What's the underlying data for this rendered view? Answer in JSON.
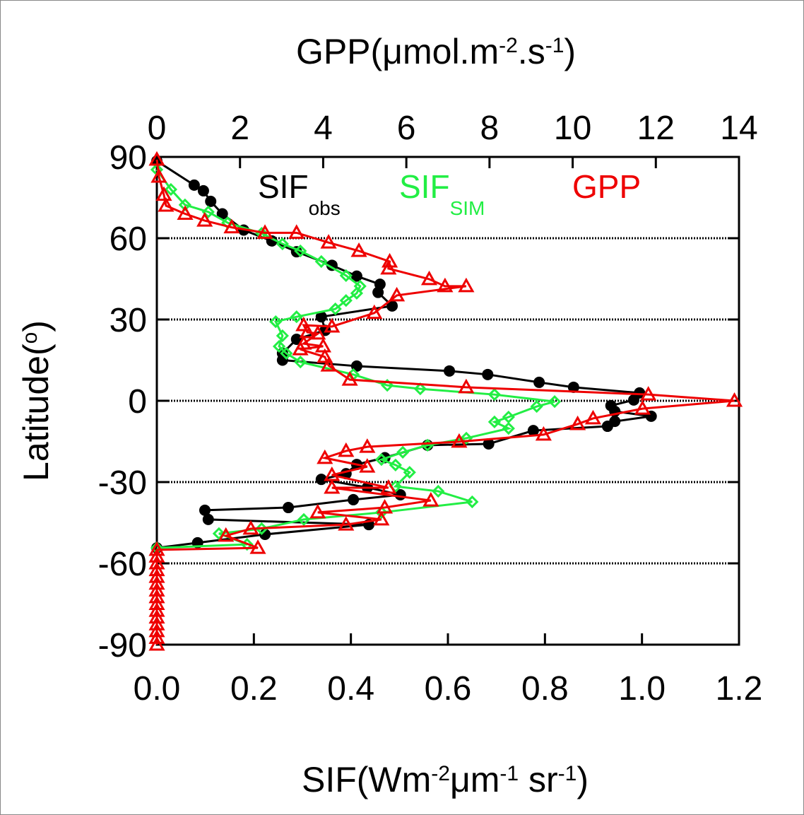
{
  "chart_data": {
    "type": "line",
    "x_label": [
      "SIF(Wm",
      "-2",
      "μm",
      "-1",
      " sr",
      "-1",
      ")"
    ],
    "x2_label": [
      "GPP(μmol.m",
      "-2",
      ".s",
      "-1",
      ")"
    ],
    "y_label": [
      "Latitude(",
      "o",
      ")"
    ],
    "xlim": [
      0,
      1.2
    ],
    "xticks": [
      {
        "value": 0,
        "label": "0.0"
      },
      {
        "value": 0.2,
        "label": "0.2"
      },
      {
        "value": 0.4,
        "label": "0.4"
      },
      {
        "value": 0.6,
        "label": "0.6"
      },
      {
        "value": 0.8,
        "label": "0.8"
      },
      {
        "value": 1.0,
        "label": "1.0"
      },
      {
        "value": 1.2,
        "label": "1.2"
      }
    ],
    "x2lim": [
      0,
      14
    ],
    "x2ticks": [
      0,
      2,
      4,
      6,
      8,
      10,
      12,
      14
    ],
    "ylim": [
      -90,
      90
    ],
    "yticks": [
      90,
      60,
      30,
      0,
      -30,
      -60,
      -90
    ],
    "grid": true,
    "series": [
      {
        "name": "SIF",
        "name_sub": "obs",
        "color": "#000000",
        "marker": "circle",
        "y": [
          88.5,
          79.6,
          77.5,
          73.6,
          69,
          63,
          59,
          55,
          50,
          46,
          43,
          40,
          35,
          31,
          26,
          22.7,
          17.5,
          15,
          12.8,
          11,
          9.7,
          6.8,
          5,
          2.9,
          0.3,
          -1.8,
          -3.9,
          -5.7,
          -7.6,
          -9.4,
          -11,
          -15.9,
          -16.4,
          -21,
          -23.5,
          -26.9,
          -29,
          -32,
          -34.7,
          -36.5,
          -39.4,
          -40.4,
          -43.8,
          -45.7,
          -49.3,
          -52.4,
          -54.3
        ],
        "values": [
          0,
          0.077,
          0.096,
          0.111,
          0.135,
          0.179,
          0.237,
          0.288,
          0.361,
          0.412,
          0.46,
          0.456,
          0.485,
          0.339,
          0.347,
          0.288,
          0.259,
          0.259,
          0.412,
          0.603,
          0.682,
          0.788,
          0.859,
          0.995,
          0.983,
          0.936,
          0.944,
          1.019,
          0.944,
          0.929,
          0.776,
          0.684,
          0.558,
          0.47,
          0.412,
          0.39,
          0.339,
          0.434,
          0.502,
          0.405,
          0.271,
          0.099,
          0.106,
          0.437,
          0.223,
          0.084,
          0
        ]
      },
      {
        "name": "SIF",
        "name_sub": "SIM",
        "color": "#22ee44",
        "marker": "diamond",
        "y": [
          85.3,
          78,
          72.3,
          69.7,
          65.7,
          61.8,
          57.9,
          55.3,
          51.4,
          46.2,
          42.3,
          39.7,
          37,
          33.9,
          31,
          29.2,
          24,
          20.1,
          17.5,
          14.3,
          9.7,
          5.7,
          4.4,
          2.3,
          -0.3,
          -2.1,
          -6,
          -7.8,
          -10.2,
          -13.8,
          -16.4,
          -19,
          -21.7,
          -23.7,
          -26.4,
          -31.6,
          -33.4,
          -37.3,
          -41.2,
          -43.8,
          -47.2,
          -49,
          -53,
          -54.3
        ],
        "values": [
          0,
          0.029,
          0.058,
          0.106,
          0.146,
          0.216,
          0.259,
          0.296,
          0.339,
          0.39,
          0.419,
          0.412,
          0.39,
          0.368,
          0.288,
          0.245,
          0.259,
          0.252,
          0.267,
          0.296,
          0.405,
          0.475,
          0.543,
          0.696,
          0.82,
          0.783,
          0.725,
          0.696,
          0.725,
          0.638,
          0.558,
          0.507,
          0.463,
          0.492,
          0.521,
          0.492,
          0.58,
          0.65,
          0.463,
          0.303,
          0.216,
          0.128,
          0.186,
          0
        ]
      },
      {
        "name": "GPP",
        "color": "#ee0000",
        "marker": "triangle",
        "axis": "x2",
        "y": [
          89,
          82.7,
          76,
          72,
          69,
          66.5,
          64,
          62,
          62,
          58.4,
          55.3,
          51.4,
          48.8,
          44.9,
          42.3,
          42.3,
          38.9,
          32.4,
          27.4,
          27.9,
          25.3,
          24.8,
          21.1,
          20.1,
          19,
          16.2,
          13,
          7.8,
          5,
          2.3,
          0,
          -2.9,
          -6.5,
          -8.6,
          -12.5,
          -15.1,
          -17,
          -18.5,
          -21.1,
          -24.3,
          -27.4,
          -32.1,
          -32.1,
          -36.8,
          -39.4,
          -41.2,
          -43.8,
          -45.7,
          -47.2,
          -49.8,
          -54.3,
          -55,
          -57.5,
          -60,
          -62.5,
          -65,
          -67.5,
          -70,
          -72.5,
          -75,
          -77.5,
          -80,
          -82.5,
          -85,
          -87.5,
          -90
        ],
        "values": [
          0,
          0.05,
          0.17,
          0.22,
          0.68,
          1.15,
          1.8,
          2.6,
          3.36,
          4.13,
          4.86,
          5.6,
          5.57,
          6.55,
          6.93,
          7.44,
          5.77,
          5.23,
          4.21,
          3.53,
          3.62,
          3.87,
          3.53,
          4.0,
          3.45,
          4.04,
          4.13,
          4.64,
          7.44,
          11.82,
          13.89,
          11.68,
          10.49,
          10.12,
          9.3,
          7.27,
          5.06,
          4.55,
          4.04,
          5.06,
          4.21,
          5.57,
          4.21,
          6.59,
          5.48,
          3.87,
          5.4,
          4.55,
          2.26,
          1.66,
          2.43,
          0,
          0,
          0,
          0,
          0,
          0,
          0,
          0,
          0,
          0,
          0,
          0,
          0,
          0,
          0
        ]
      }
    ]
  }
}
